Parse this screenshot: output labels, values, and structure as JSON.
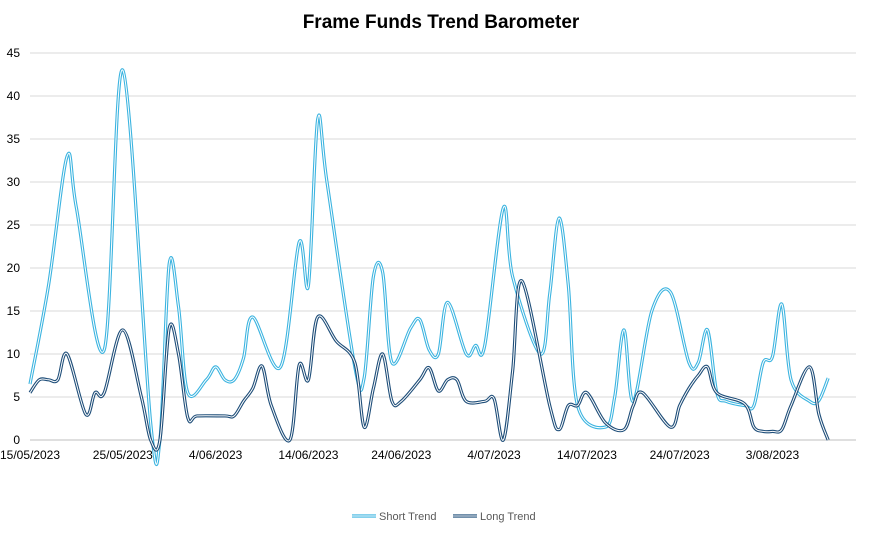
{
  "chart_data": {
    "type": "line",
    "title": "Frame Funds Trend Barometer",
    "xlabel": "",
    "ylabel": "",
    "ylim": [
      0,
      45
    ],
    "yticks": [
      0,
      5,
      10,
      15,
      20,
      25,
      30,
      35,
      40,
      45
    ],
    "xlim": [
      "15/05/2023",
      "12/08/2023"
    ],
    "xticks": [
      "15/05/2023",
      "25/05/2023",
      "4/06/2023",
      "14/06/2023",
      "24/06/2023",
      "4/07/2023",
      "14/07/2023",
      "24/07/2023",
      "3/08/2023"
    ],
    "grid": "horizontal",
    "legend": "bottom",
    "series": [
      {
        "name": "Short Trend",
        "color": "#3cb4e0",
        "x": [
          "15/05/2023",
          "17/05/2023",
          "19/05/2023",
          "20/05/2023",
          "23/05/2023",
          "25/05/2023",
          "28/05/2023",
          "29/05/2023",
          "30/05/2023",
          "31/05/2023",
          "1/06/2023",
          "3/06/2023",
          "4/06/2023",
          "5/06/2023",
          "6/06/2023",
          "7/06/2023",
          "8/06/2023",
          "11/06/2023",
          "13/06/2023",
          "14/06/2023",
          "15/06/2023",
          "16/06/2023",
          "19/06/2023",
          "20/06/2023",
          "21/06/2023",
          "22/06/2023",
          "23/06/2023",
          "25/06/2023",
          "26/06/2023",
          "27/06/2023",
          "28/06/2023",
          "29/06/2023",
          "1/07/2023",
          "2/07/2023",
          "3/07/2023",
          "5/07/2023",
          "6/07/2023",
          "9/07/2023",
          "10/07/2023",
          "11/07/2023",
          "12/07/2023",
          "13/07/2023",
          "16/07/2023",
          "17/07/2023",
          "18/07/2023",
          "19/07/2023",
          "21/07/2023",
          "23/07/2023",
          "25/07/2023",
          "26/07/2023",
          "27/07/2023",
          "28/07/2023",
          "29/07/2023",
          "31/07/2023",
          "1/08/2023",
          "2/08/2023",
          "3/08/2023",
          "4/08/2023",
          "5/08/2023",
          "7/08/2023",
          "8/08/2023",
          "9/08/2023"
        ],
        "values": [
          6.5,
          18,
          33,
          27,
          10.5,
          43,
          2,
          0,
          20.5,
          15.5,
          5.5,
          7,
          8.5,
          7,
          7,
          9.5,
          14.3,
          8.5,
          23,
          18,
          37.3,
          30,
          8.5,
          7.2,
          19,
          19.5,
          9,
          13,
          14,
          10.5,
          10,
          16,
          10,
          11,
          11,
          27,
          19,
          10,
          17,
          25.8,
          18,
          4,
          1.5,
          5,
          12.8,
          4.5,
          15,
          17.2,
          9,
          9,
          12.8,
          5.5,
          4.5,
          4,
          4,
          9,
          9.7,
          15.8,
          7,
          4.5,
          4.6,
          7.2
        ]
      },
      {
        "name": "Long Trend",
        "color": "#1f4e79",
        "x": [
          "15/05/2023",
          "16/05/2023",
          "17/05/2023",
          "18/05/2023",
          "19/05/2023",
          "21/05/2023",
          "22/05/2023",
          "23/05/2023",
          "25/05/2023",
          "27/05/2023",
          "28/05/2023",
          "29/05/2023",
          "30/05/2023",
          "31/05/2023",
          "1/06/2023",
          "2/06/2023",
          "5/06/2023",
          "6/06/2023",
          "7/06/2023",
          "8/06/2023",
          "9/06/2023",
          "10/06/2023",
          "12/06/2023",
          "13/06/2023",
          "14/06/2023",
          "15/06/2023",
          "17/06/2023",
          "19/06/2023",
          "20/06/2023",
          "21/06/2023",
          "22/06/2023",
          "23/06/2023",
          "24/06/2023",
          "26/06/2023",
          "27/06/2023",
          "28/06/2023",
          "29/06/2023",
          "30/06/2023",
          "1/07/2023",
          "3/07/2023",
          "4/07/2023",
          "5/07/2023",
          "6/07/2023",
          "7/07/2023",
          "10/07/2023",
          "11/07/2023",
          "12/07/2023",
          "13/07/2023",
          "14/07/2023",
          "16/07/2023",
          "18/07/2023",
          "19/07/2023",
          "20/07/2023",
          "23/07/2023",
          "24/07/2023",
          "25/07/2023",
          "26/07/2023",
          "27/07/2023",
          "28/07/2023",
          "31/07/2023",
          "1/08/2023",
          "2/08/2023",
          "3/08/2023",
          "4/08/2023",
          "5/08/2023",
          "7/08/2023",
          "8/08/2023",
          "9/08/2023"
        ],
        "values": [
          5.5,
          7,
          7,
          7,
          10,
          3,
          5.5,
          5.5,
          12.8,
          5,
          0,
          0,
          13,
          10,
          2.6,
          2.8,
          2.8,
          2.8,
          4.5,
          6,
          8.6,
          4,
          0,
          8.7,
          7,
          14.3,
          11.5,
          9,
          1.5,
          6,
          10,
          4.5,
          4.5,
          7,
          8.4,
          5.7,
          7,
          7,
          4.5,
          4.5,
          4.8,
          0,
          8,
          18.5,
          4,
          1.2,
          4,
          4,
          5.5,
          2,
          1.2,
          4,
          5.5,
          1.5,
          4,
          6,
          7.5,
          8.5,
          5.5,
          4.2,
          1.5,
          1,
          1,
          1.2,
          4,
          8.5,
          3,
          0
        ]
      }
    ]
  }
}
